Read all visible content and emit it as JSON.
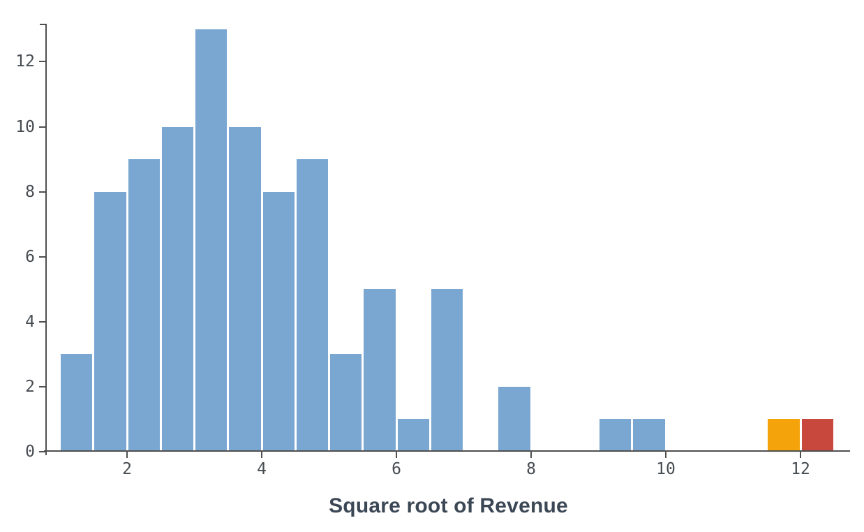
{
  "chart_data": {
    "type": "bar",
    "subtype": "histogram",
    "title": "",
    "xlabel": "Square root of Revenue",
    "ylabel": "",
    "bin_width": 0.5,
    "xlim": [
      0.8,
      12.95
    ],
    "ylim": [
      0,
      13.2
    ],
    "x_ticks": [
      2,
      4,
      6,
      8,
      10,
      12
    ],
    "y_ticks": [
      0,
      2,
      4,
      6,
      8,
      10,
      12
    ],
    "grid": false,
    "legend": false,
    "bars": [
      {
        "x0": 1.0,
        "x1": 1.5,
        "count": 3,
        "color": "blue"
      },
      {
        "x0": 1.5,
        "x1": 2.0,
        "count": 8,
        "color": "blue"
      },
      {
        "x0": 2.0,
        "x1": 2.5,
        "count": 9,
        "color": "blue"
      },
      {
        "x0": 2.5,
        "x1": 3.0,
        "count": 10,
        "color": "blue"
      },
      {
        "x0": 3.0,
        "x1": 3.5,
        "count": 13,
        "color": "blue"
      },
      {
        "x0": 3.5,
        "x1": 4.0,
        "count": 10,
        "color": "blue"
      },
      {
        "x0": 4.0,
        "x1": 4.5,
        "count": 8,
        "color": "blue"
      },
      {
        "x0": 4.5,
        "x1": 5.0,
        "count": 9,
        "color": "blue"
      },
      {
        "x0": 5.0,
        "x1": 5.5,
        "count": 3,
        "color": "blue"
      },
      {
        "x0": 5.5,
        "x1": 6.0,
        "count": 5,
        "color": "blue"
      },
      {
        "x0": 6.0,
        "x1": 6.5,
        "count": 1,
        "color": "blue"
      },
      {
        "x0": 6.5,
        "x1": 7.0,
        "count": 5,
        "color": "blue"
      },
      {
        "x0": 7.0,
        "x1": 7.5,
        "count": 0,
        "color": "blue"
      },
      {
        "x0": 7.5,
        "x1": 8.0,
        "count": 2,
        "color": "blue"
      },
      {
        "x0": 8.0,
        "x1": 8.5,
        "count": 0,
        "color": "blue"
      },
      {
        "x0": 8.5,
        "x1": 9.0,
        "count": 0,
        "color": "blue"
      },
      {
        "x0": 9.0,
        "x1": 9.5,
        "count": 1,
        "color": "blue"
      },
      {
        "x0": 9.5,
        "x1": 10.0,
        "count": 1,
        "color": "blue"
      },
      {
        "x0": 10.0,
        "x1": 10.5,
        "count": 0,
        "color": "blue"
      },
      {
        "x0": 10.5,
        "x1": 11.0,
        "count": 0,
        "color": "blue"
      },
      {
        "x0": 11.0,
        "x1": 11.5,
        "count": 0,
        "color": "blue"
      },
      {
        "x0": 11.5,
        "x1": 12.0,
        "count": 1,
        "color": "orange"
      },
      {
        "x0": 12.0,
        "x1": 12.5,
        "count": 1,
        "color": "red"
      }
    ],
    "colors": {
      "blue": "#7AA7D2",
      "orange": "#F5A30B",
      "red": "#C9483E"
    },
    "axis_color": "#4f4f4f",
    "tick_label_color": "#474c52",
    "title_color": "#3b4754",
    "background_color": "#ffffff"
  }
}
